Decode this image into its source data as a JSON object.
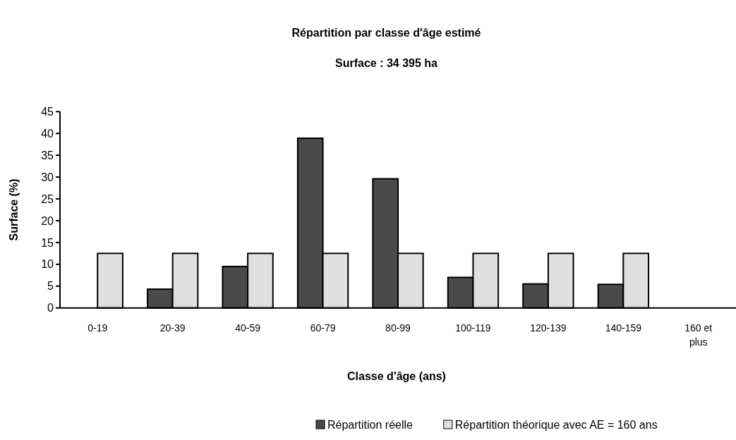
{
  "chart_data": {
    "type": "bar",
    "title": "Répartition par classe d'âge estimé",
    "subtitle": "Surface : 34 395 ha",
    "xlabel": "Classe d'âge (ans)",
    "ylabel": "Surface (%)",
    "categories": [
      "0-19",
      "20-39",
      "40-59",
      "60-79",
      "80-99",
      "100-119",
      "120-139",
      "140-159",
      "160 et plus"
    ],
    "series": [
      {
        "name": "Répartition réelle",
        "color": "#4a4a4a",
        "values": [
          0,
          4.3,
          9.5,
          38.9,
          29.6,
          7.0,
          5.5,
          5.4,
          0
        ]
      },
      {
        "name": "Répartition théorique avec AE = 160 ans",
        "color": "#e0e0e0",
        "values": [
          12.5,
          12.5,
          12.5,
          12.5,
          12.5,
          12.5,
          12.5,
          12.5,
          0
        ]
      }
    ],
    "ylim": [
      0,
      45
    ],
    "yticks": [
      0,
      5,
      10,
      15,
      20,
      25,
      30,
      35,
      40,
      45
    ],
    "grid": false,
    "legend": "bottom"
  }
}
